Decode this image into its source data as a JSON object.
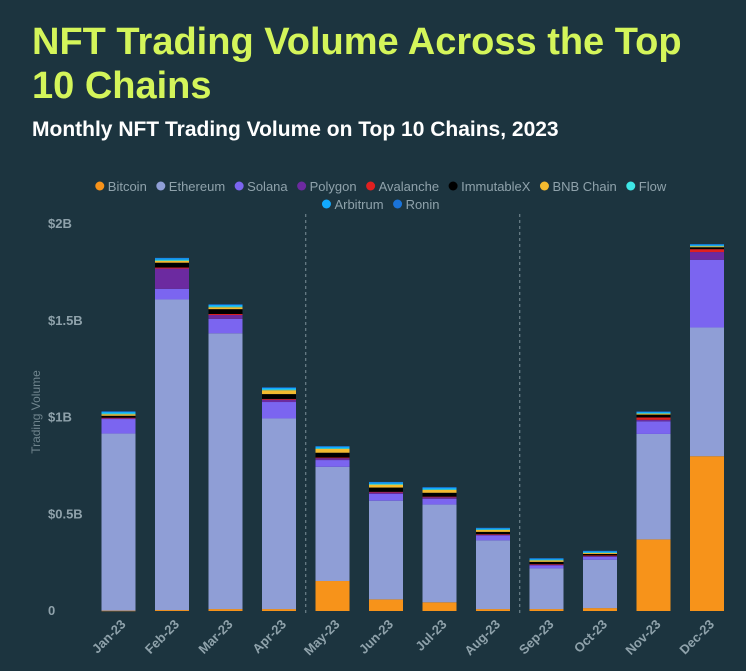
{
  "title": "NFT Trading Volume Across the Top 10 Chains",
  "subtitle": "Monthly NFT Trading Volume on Top 10 Chains, 2023",
  "colors": {
    "background": "#1c343f",
    "title": "#d4f55a",
    "axis_text": "#8fa2ab",
    "divider": "#7d9099"
  },
  "chart_data": {
    "type": "bar",
    "stacked": true,
    "ylabel": "Trading Volume",
    "xlabel": "",
    "ylim": [
      0,
      2000000000
    ],
    "y_ticks": [
      {
        "value": 0,
        "label": "0"
      },
      {
        "value": 500000000,
        "label": "$0.5B"
      },
      {
        "value": 1000000000,
        "label": "$1B"
      },
      {
        "value": 1500000000,
        "label": "$1.5B"
      },
      {
        "value": 2000000000,
        "label": "$2B"
      }
    ],
    "categories": [
      "Jan-23",
      "Feb-23",
      "Mar-23",
      "Apr-23",
      "May-23",
      "Jun-23",
      "Jul-23",
      "Aug-23",
      "Sep-23",
      "Oct-23",
      "Nov-23",
      "Dec-23"
    ],
    "dividers_after": [
      "Apr-23",
      "Aug-23"
    ],
    "legend_position": "top",
    "series": [
      {
        "name": "Bitcoin",
        "color": "#f7931a",
        "values": [
          2000000,
          5000000,
          10000000,
          10000000,
          155000000,
          60000000,
          45000000,
          10000000,
          10000000,
          15000000,
          370000000,
          800000000
        ]
      },
      {
        "name": "Ethereum",
        "color": "#8f9ed6",
        "values": [
          915000000,
          1605000000,
          1425000000,
          985000000,
          590000000,
          510000000,
          505000000,
          355000000,
          210000000,
          250000000,
          545000000,
          665000000
        ]
      },
      {
        "name": "Solana",
        "color": "#7b65f0",
        "values": [
          75000000,
          55000000,
          75000000,
          85000000,
          35000000,
          35000000,
          30000000,
          25000000,
          15000000,
          15000000,
          65000000,
          350000000
        ]
      },
      {
        "name": "Polygon",
        "color": "#6c2aa0",
        "values": [
          5000000,
          105000000,
          20000000,
          12000000,
          10000000,
          8000000,
          8000000,
          5000000,
          5000000,
          5000000,
          8000000,
          40000000
        ]
      },
      {
        "name": "Avalanche",
        "color": "#e02020",
        "values": [
          2000000,
          5000000,
          5000000,
          4000000,
          3000000,
          3000000,
          3000000,
          2000000,
          2000000,
          2000000,
          12000000,
          15000000
        ]
      },
      {
        "name": "ImmutableX",
        "color": "#000000",
        "values": [
          10000000,
          25000000,
          25000000,
          25000000,
          25000000,
          22000000,
          20000000,
          12000000,
          12000000,
          8000000,
          15000000,
          10000000
        ]
      },
      {
        "name": "BNB Chain",
        "color": "#f3ba2f",
        "values": [
          8000000,
          10000000,
          10000000,
          20000000,
          20000000,
          15000000,
          15000000,
          10000000,
          8000000,
          5000000,
          5000000,
          5000000
        ]
      },
      {
        "name": "Flow",
        "color": "#3ee6e6",
        "values": [
          5000000,
          5000000,
          5000000,
          5000000,
          4000000,
          4000000,
          4000000,
          3000000,
          3000000,
          3000000,
          3000000,
          3000000
        ]
      },
      {
        "name": "Arbitrum",
        "color": "#12aaff",
        "values": [
          8000000,
          8000000,
          8000000,
          8000000,
          8000000,
          8000000,
          8000000,
          6000000,
          6000000,
          6000000,
          6000000,
          6000000
        ]
      },
      {
        "name": "Ronin",
        "color": "#1a73d9",
        "values": [
          2000000,
          2000000,
          2000000,
          2000000,
          2000000,
          2000000,
          2000000,
          2000000,
          2000000,
          2000000,
          2000000,
          2000000
        ]
      }
    ]
  }
}
